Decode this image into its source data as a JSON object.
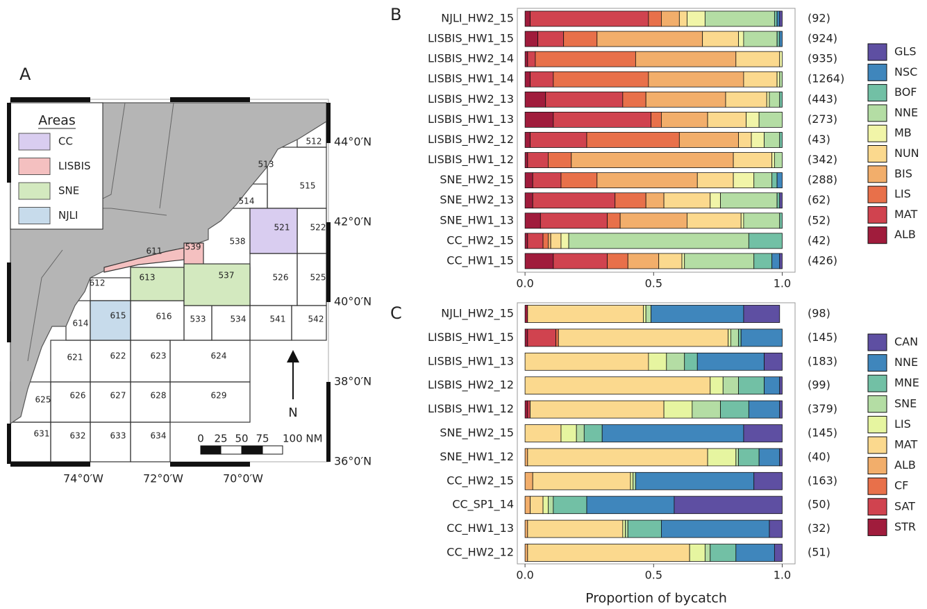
{
  "map": {
    "panel": "A",
    "legend_title": "Areas",
    "legend": [
      {
        "label": "CC",
        "color": "#d9cdf0"
      },
      {
        "label": "LISBIS",
        "color": "#f4c0c0"
      },
      {
        "label": "SNE",
        "color": "#d3e9bf"
      },
      {
        "label": "NJLI",
        "color": "#c7dbeb"
      }
    ],
    "stat_areas": [
      "512",
      "513",
      "514",
      "515",
      "521",
      "522",
      "525",
      "526",
      "537",
      "538",
      "539",
      "611",
      "612",
      "613",
      "614",
      "615",
      "616",
      "533",
      "534",
      "541",
      "542",
      "621",
      "622",
      "623",
      "624",
      "625",
      "626",
      "627",
      "628",
      "629",
      "631",
      "632",
      "633",
      "634"
    ],
    "lat_labels": [
      "44°0′N",
      "42°0′N",
      "40°0′N",
      "38°0′N",
      "36°0′N"
    ],
    "lon_labels": [
      "74°0′W",
      "72°0′W",
      "70°0′W"
    ],
    "scale_labels": [
      "0",
      "25",
      "50",
      "75",
      "100 NM"
    ],
    "north": "N"
  },
  "chart_data": [
    {
      "type": "bar",
      "orientation": "horizontal",
      "stacked": true,
      "panel": "B",
      "categories": [
        "NJLI_HW2_15",
        "LISBIS_HW1_15",
        "LISBIS_HW2_14",
        "LISBIS_HW1_14",
        "LISBIS_HW2_13",
        "LISBIS_HW1_13",
        "LISBIS_HW2_12",
        "LISBIS_HW1_12",
        "SNE_HW2_15",
        "SNE_HW2_13",
        "SNE_HW1_13",
        "CC_HW2_15",
        "CC_HW1_15"
      ],
      "count_labels": [
        "(92)",
        "(924)",
        "(935)",
        "(1264)",
        "(443)",
        "(273)",
        "(43)",
        "(342)",
        "(288)",
        "(62)",
        "(52)",
        "(42)",
        "(426)"
      ],
      "series": [
        {
          "name": "GLS",
          "color": "#5e4fa2",
          "values": [
            0.01,
            0,
            0,
            0,
            0,
            0,
            0,
            0,
            0,
            0.01,
            0,
            0,
            0.01
          ]
        },
        {
          "name": "NSC",
          "color": "#3f86bc",
          "values": [
            0.01,
            0.01,
            0,
            0,
            0,
            0,
            0,
            0,
            0.02,
            0,
            0,
            0,
            0.03
          ]
        },
        {
          "name": "BOF",
          "color": "#72c0a5",
          "values": [
            0.01,
            0.01,
            0,
            0,
            0.01,
            0,
            0.01,
            0,
            0.02,
            0.01,
            0.01,
            0.13,
            0.07
          ]
        },
        {
          "name": "NNE",
          "color": "#b4dda4",
          "values": [
            0.27,
            0.13,
            0,
            0.01,
            0.04,
            0.09,
            0.06,
            0.03,
            0.07,
            0.22,
            0.14,
            0.7,
            0.27
          ]
        },
        {
          "name": "MB",
          "color": "#f1f5a8",
          "values": [
            0.07,
            0.02,
            0.01,
            0.01,
            0.01,
            0.05,
            0.05,
            0.01,
            0.08,
            0.04,
            0.01,
            0.03,
            0.01
          ]
        },
        {
          "name": "NUN",
          "color": "#fbd98e",
          "values": [
            0.03,
            0.14,
            0.17,
            0.13,
            0.16,
            0.15,
            0.05,
            0.15,
            0.14,
            0.18,
            0.21,
            0.04,
            0.09
          ]
        },
        {
          "name": "BIS",
          "color": "#f2ae6b",
          "values": [
            0.07,
            0.41,
            0.39,
            0.37,
            0.31,
            0.18,
            0.23,
            0.63,
            0.39,
            0.07,
            0.26,
            0.01,
            0.12
          ]
        },
        {
          "name": "LIS",
          "color": "#e8704a",
          "values": [
            0.05,
            0.13,
            0.39,
            0.37,
            0.09,
            0.04,
            0.36,
            0.09,
            0.14,
            0.12,
            0.05,
            0.02,
            0.08
          ]
        },
        {
          "name": "MAT",
          "color": "#d0434f",
          "values": [
            0.46,
            0.1,
            0.03,
            0.09,
            0.3,
            0.38,
            0.22,
            0.08,
            0.11,
            0.32,
            0.26,
            0.06,
            0.21
          ]
        },
        {
          "name": "ALB",
          "color": "#a01c3c",
          "values": [
            0.02,
            0.05,
            0.01,
            0.02,
            0.08,
            0.11,
            0.02,
            0.01,
            0.03,
            0.03,
            0.06,
            0.01,
            0.11
          ]
        }
      ],
      "xlim": [
        -0.03,
        1.05
      ],
      "xticks": [
        {
          "value": 0,
          "label": "0.0"
        },
        {
          "value": 0.5,
          "label": "0.5"
        },
        {
          "value": 1,
          "label": "1.0"
        }
      ],
      "grid": false,
      "legend": "right"
    },
    {
      "type": "bar",
      "orientation": "horizontal",
      "stacked": true,
      "panel": "C",
      "categories": [
        "NJLI_HW2_15",
        "LISBIS_HW1_15",
        "LISBIS_HW1_13",
        "LISBIS_HW2_12",
        "LISBIS_HW1_12",
        "SNE_HW2_15",
        "SNE_HW1_12",
        "CC_HW2_15",
        "CC_SP1_14",
        "CC_HW1_13",
        "CC_HW2_12"
      ],
      "count_labels": [
        "(98)",
        "(145)",
        "(183)",
        "(99)",
        "(379)",
        "(145)",
        "(40)",
        "(163)",
        "(50)",
        "(32)",
        "(51)"
      ],
      "series": [
        {
          "name": "CAN",
          "color": "#5e4fa2",
          "values": [
            0.14,
            0,
            0.07,
            0.01,
            0.01,
            0.15,
            0.01,
            0.11,
            0.42,
            0.05,
            0.03
          ]
        },
        {
          "name": "NNE",
          "color": "#3f86bc",
          "values": [
            0.36,
            0.16,
            0.26,
            0.06,
            0.12,
            0.55,
            0.08,
            0.46,
            0.34,
            0.42,
            0.15
          ]
        },
        {
          "name": "MNE",
          "color": "#72c0a5",
          "values": [
            0,
            0.01,
            0.05,
            0.1,
            0.11,
            0.07,
            0.08,
            0,
            0.13,
            0.13,
            0.1
          ]
        },
        {
          "name": "SNE",
          "color": "#b4dda4",
          "values": [
            0.02,
            0.03,
            0.07,
            0.06,
            0.11,
            0.03,
            0.01,
            0.01,
            0.02,
            0.01,
            0.02
          ]
        },
        {
          "name": "LIS",
          "color": "#e6f5a0",
          "values": [
            0.01,
            0.01,
            0.07,
            0.05,
            0.11,
            0.06,
            0.11,
            0.01,
            0.02,
            0.01,
            0.06
          ]
        },
        {
          "name": "MAT",
          "color": "#fbd98e",
          "values": [
            0.45,
            0.66,
            0.48,
            0.72,
            0.52,
            0.14,
            0.7,
            0.38,
            0.05,
            0.37,
            0.63
          ]
        },
        {
          "name": "ALB",
          "color": "#f2ae6b",
          "values": [
            0,
            0,
            0,
            0,
            0,
            0,
            0.01,
            0.03,
            0.02,
            0.01,
            0.01
          ]
        },
        {
          "name": "CF",
          "color": "#e8704a",
          "values": [
            0,
            0.01,
            0,
            0,
            0,
            0,
            0,
            0,
            0,
            0,
            0
          ]
        },
        {
          "name": "SAT",
          "color": "#d0434f",
          "values": [
            0,
            0.11,
            0,
            0,
            0.01,
            0,
            0,
            0,
            0,
            0,
            0
          ]
        },
        {
          "name": "STR",
          "color": "#a01c3c",
          "values": [
            0.01,
            0.01,
            0,
            0,
            0.01,
            0,
            0,
            0,
            0,
            0,
            0
          ]
        }
      ],
      "xlim": [
        -0.03,
        1.05
      ],
      "xticks": [
        {
          "value": 0,
          "label": "0.0"
        },
        {
          "value": 0.5,
          "label": "0.5"
        },
        {
          "value": 1,
          "label": "1.0"
        }
      ],
      "x_label": "Proportion of bycatch",
      "grid": false,
      "legend": "right"
    }
  ]
}
